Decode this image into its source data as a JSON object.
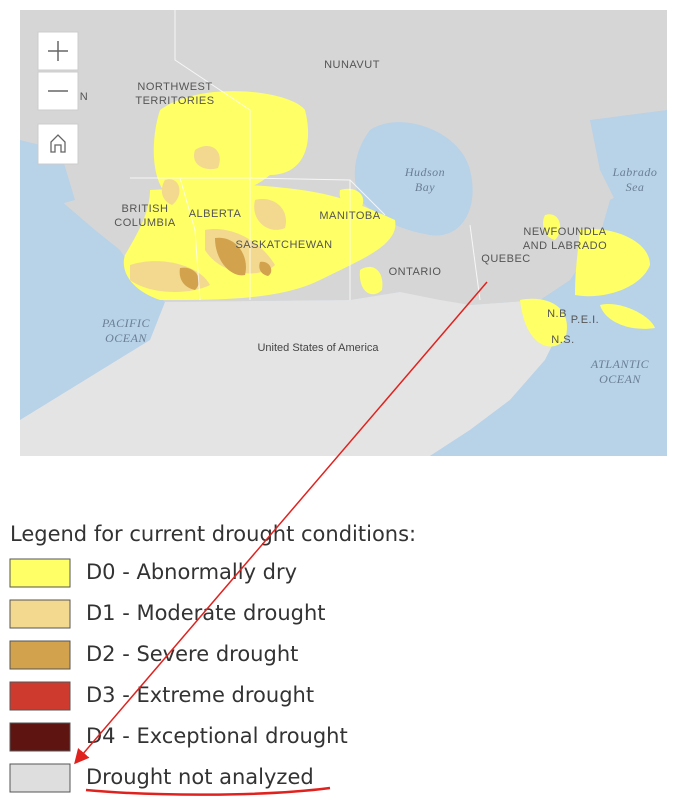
{
  "map": {
    "labels": [
      {
        "lines": [
          "NUNAVUT"
        ]
      },
      {
        "lines": [
          "N"
        ]
      },
      {
        "lines": [
          "NORTHWEST",
          "TERRITORIES"
        ]
      },
      {
        "lines": [
          "BRITISH",
          "COLUMBIA"
        ]
      },
      {
        "lines": [
          "ALBERTA"
        ]
      },
      {
        "lines": [
          "MANITOBA"
        ]
      },
      {
        "lines": [
          "SASKATCHEWAN"
        ]
      },
      {
        "lines": [
          "ONTARIO"
        ]
      },
      {
        "lines": [
          "QUEBEC"
        ]
      },
      {
        "lines": [
          "NEWFOUNDLA",
          "AND LABRADO"
        ]
      },
      {
        "lines": [
          "N.B"
        ]
      },
      {
        "lines": [
          "P.E.I."
        ]
      },
      {
        "lines": [
          "N.S."
        ]
      }
    ],
    "waters": [
      {
        "lines": [
          "Hudson",
          "Bay"
        ]
      },
      {
        "lines": [
          "Labrado",
          "Sea"
        ]
      },
      {
        "lines": [
          "PACIFIC",
          "OCEAN"
        ]
      },
      {
        "lines": [
          "ATLANTIC",
          "OCEAN"
        ]
      }
    ],
    "country": "United States of America"
  },
  "legend": {
    "title": "Legend for current drought conditions:",
    "items": [
      {
        "label": "D0 - Abnormally dry",
        "color": "#ffff66"
      },
      {
        "label": "D1 - Moderate drought",
        "color": "#f2d98f"
      },
      {
        "label": "D2 - Severe drought",
        "color": "#d3a24c"
      },
      {
        "label": "D3 - Extreme drought",
        "color": "#cf3a2e"
      },
      {
        "label": "D4 - Exceptional drought",
        "color": "#5e1410"
      },
      {
        "label": "Drought not analyzed",
        "color": "#dedede"
      }
    ]
  }
}
